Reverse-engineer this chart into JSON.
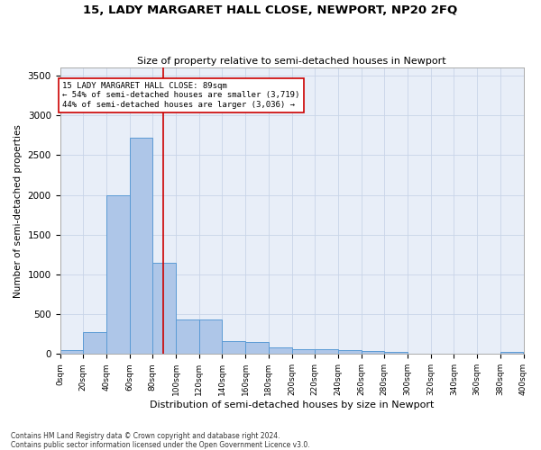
{
  "title": "15, LADY MARGARET HALL CLOSE, NEWPORT, NP20 2FQ",
  "subtitle": "Size of property relative to semi-detached houses in Newport",
  "xlabel": "Distribution of semi-detached houses by size in Newport",
  "ylabel": "Number of semi-detached properties",
  "bin_edges": [
    0,
    20,
    40,
    60,
    80,
    100,
    120,
    140,
    160,
    180,
    200,
    220,
    240,
    260,
    280,
    300,
    320,
    340,
    360,
    380,
    400
  ],
  "bar_values": [
    50,
    270,
    2000,
    2720,
    1150,
    430,
    430,
    160,
    150,
    80,
    60,
    55,
    50,
    35,
    30,
    0,
    0,
    0,
    0,
    30
  ],
  "bar_color": "#aec6e8",
  "bar_edge_color": "#5b9bd5",
  "vline_color": "#cc0000",
  "vline_x": 89,
  "annotation_text": "15 LADY MARGARET HALL CLOSE: 89sqm\n← 54% of semi-detached houses are smaller (3,719)\n44% of semi-detached houses are larger (3,036) →",
  "annotation_box_color": "#ffffff",
  "annotation_box_edge": "#cc0000",
  "ylim": [
    0,
    3600
  ],
  "yticks": [
    0,
    500,
    1000,
    1500,
    2000,
    2500,
    3000,
    3500
  ],
  "grid_color": "#c8d4e8",
  "bg_color": "#e8eef8",
  "footer_line1": "Contains HM Land Registry data © Crown copyright and database right 2024.",
  "footer_line2": "Contains public sector information licensed under the Open Government Licence v3.0."
}
